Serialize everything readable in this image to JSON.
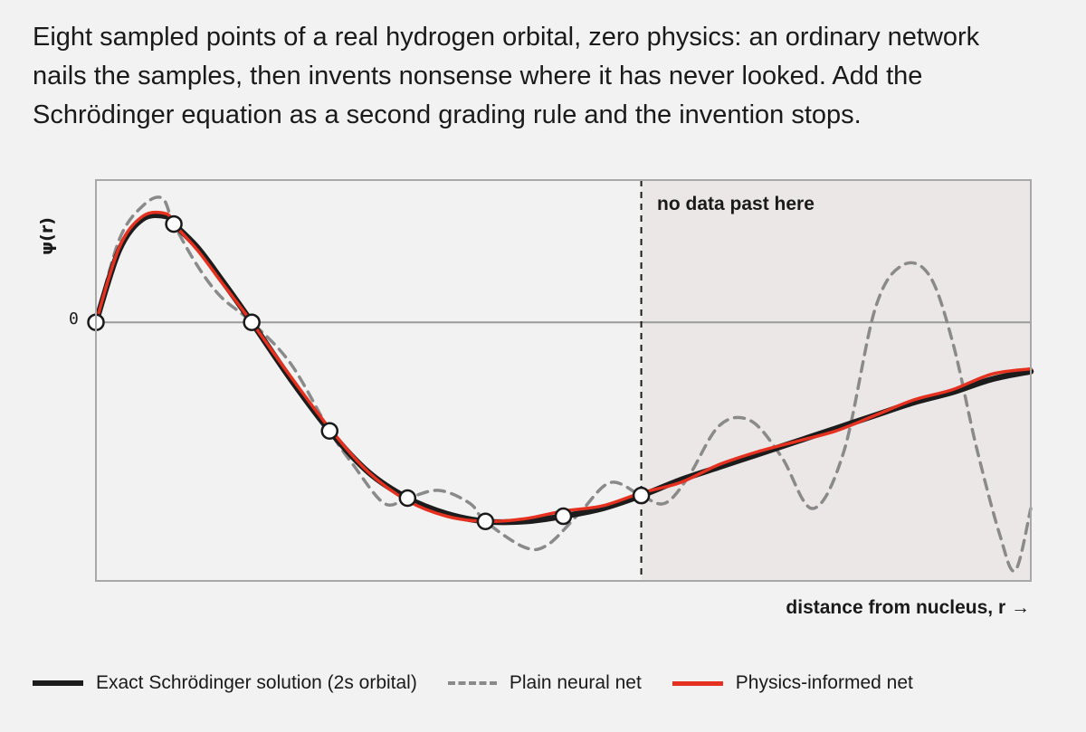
{
  "caption": "Eight sampled points of a real hydrogen orbital, zero physics: an ordinary network nails the samples, then invents nonsense where it has never looked. Add the Schrödinger equation as a second grading rule and the invention stops.",
  "chart_data": {
    "type": "line",
    "xlabel": "distance from nucleus, r →",
    "ylabel": "ψ(r)",
    "y_ticks": [
      "0"
    ],
    "annotation": "no data past here",
    "xlim": [
      0,
      12
    ],
    "ylim": [
      -1.0,
      0.55
    ],
    "data_cutoff_x": 7.0,
    "grid": false,
    "legend_position": "bottom",
    "samples": {
      "x": [
        0.0,
        1.0,
        2.0,
        3.0,
        4.0,
        5.0,
        6.0,
        7.0
      ],
      "y": [
        0.0,
        0.38,
        0.0,
        -0.42,
        -0.68,
        -0.77,
        -0.75,
        -0.67
      ]
    },
    "series": [
      {
        "name": "Exact Schrödinger solution (2s orbital)",
        "color": "#1c1c1c",
        "style": "solid",
        "x": [
          0,
          0.3,
          0.6,
          0.9,
          1.0,
          1.3,
          1.6,
          2.0,
          2.5,
          3.0,
          3.5,
          4.0,
          4.5,
          5.0,
          5.5,
          6.0,
          6.5,
          7.0,
          7.5,
          8.0,
          8.5,
          9.0,
          9.5,
          10.0,
          10.5,
          11.0,
          11.5,
          12.0
        ],
        "y": [
          0,
          0.28,
          0.4,
          0.41,
          0.38,
          0.29,
          0.17,
          0.0,
          -0.22,
          -0.42,
          -0.58,
          -0.68,
          -0.74,
          -0.77,
          -0.77,
          -0.75,
          -0.72,
          -0.67,
          -0.61,
          -0.56,
          -0.51,
          -0.46,
          -0.41,
          -0.36,
          -0.31,
          -0.27,
          -0.22,
          -0.19
        ]
      },
      {
        "name": "Plain neural net",
        "color": "#8a8a8a",
        "style": "dashed",
        "x": [
          0,
          0.3,
          0.6,
          0.85,
          1.0,
          1.3,
          1.6,
          2.0,
          2.5,
          3.0,
          3.3,
          3.7,
          4.0,
          4.4,
          4.8,
          5.0,
          5.5,
          5.8,
          6.2,
          6.6,
          7.0,
          7.3,
          7.6,
          8.0,
          8.4,
          8.8,
          9.2,
          9.6,
          10.0,
          10.35,
          10.7,
          11.0,
          11.3,
          11.6,
          11.8,
          12.0
        ],
        "y": [
          0,
          0.32,
          0.45,
          0.48,
          0.38,
          0.22,
          0.1,
          0.0,
          -0.16,
          -0.42,
          -0.55,
          -0.7,
          -0.68,
          -0.65,
          -0.7,
          -0.77,
          -0.87,
          -0.86,
          -0.74,
          -0.62,
          -0.67,
          -0.7,
          -0.6,
          -0.4,
          -0.38,
          -0.52,
          -0.72,
          -0.5,
          0.05,
          0.22,
          0.18,
          -0.08,
          -0.48,
          -0.82,
          -0.96,
          -0.72
        ]
      },
      {
        "name": "Physics-informed net",
        "color": "#e5311f",
        "style": "solid",
        "x": [
          0,
          0.3,
          0.6,
          0.9,
          1.0,
          1.3,
          1.6,
          2.0,
          2.5,
          3.0,
          3.5,
          4.0,
          4.5,
          5.0,
          5.5,
          6.0,
          6.5,
          7.0,
          7.5,
          8.0,
          8.5,
          9.0,
          9.5,
          10.0,
          10.5,
          11.0,
          11.5,
          12.0
        ],
        "y": [
          0,
          0.29,
          0.41,
          0.42,
          0.38,
          0.28,
          0.16,
          0.0,
          -0.21,
          -0.41,
          -0.58,
          -0.69,
          -0.75,
          -0.77,
          -0.76,
          -0.73,
          -0.71,
          -0.66,
          -0.62,
          -0.55,
          -0.5,
          -0.46,
          -0.42,
          -0.36,
          -0.3,
          -0.26,
          -0.2,
          -0.18
        ]
      }
    ]
  }
}
